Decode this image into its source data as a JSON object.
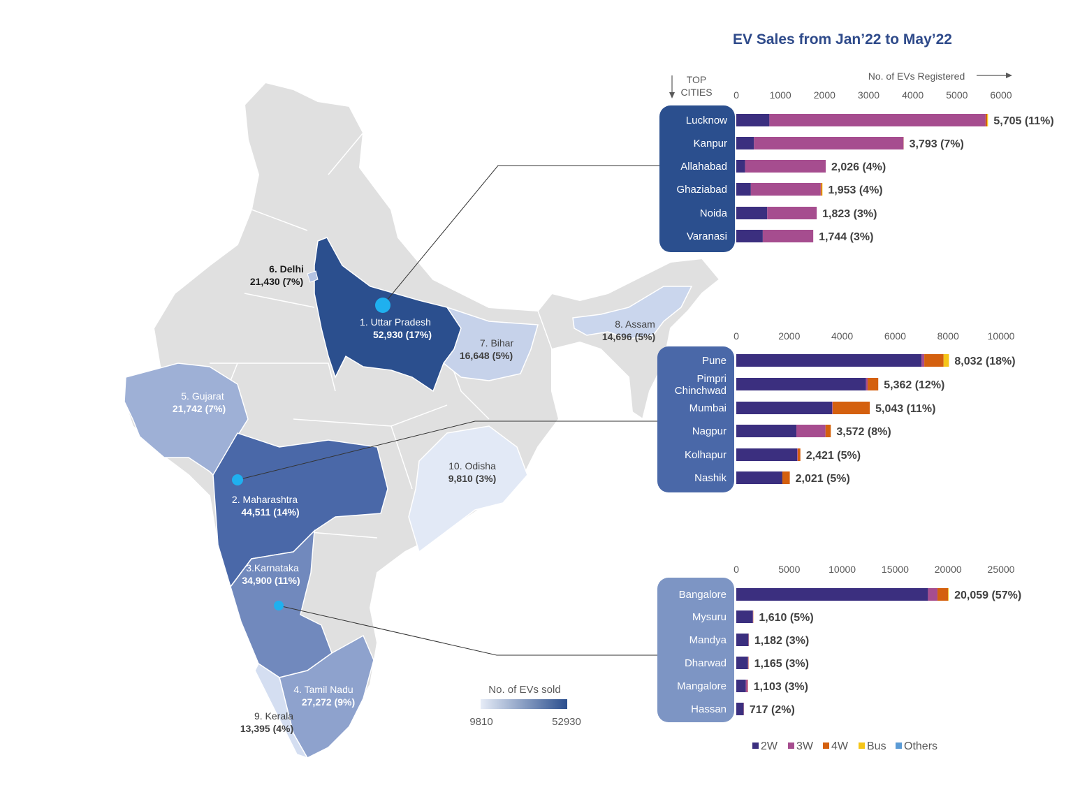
{
  "title": "EV Sales from Jan’22 to May’22",
  "axis_caption": "No. of EVs Registered",
  "top_cities_label": [
    "TOP",
    "CITIES"
  ],
  "colors": {
    "2W": "#3b2f7f",
    "3W": "#a64d8f",
    "4W": "#d4600f",
    "Bus": "#f5c518",
    "Others": "#5b9bd5",
    "panel_up": "#2b4f8e",
    "panel_mh": "#4a68a8",
    "panel_ka": "#7d95c4",
    "title": "#2e4a8a"
  },
  "legend": {
    "title": "No. of EVs sold",
    "min": "9810",
    "max": "52930",
    "color_min": "#e6ecf7",
    "color_max": "#2b4f8e"
  },
  "map": {
    "states": [
      {
        "name": "1. Uttar Pradesh",
        "value": "52,930 (17%)",
        "fill": "#2b4f8e",
        "text": "#ffffff"
      },
      {
        "name": "2. Maharashtra",
        "value": "44,511 (14%)",
        "fill": "#4a68a8",
        "text": "#ffffff"
      },
      {
        "name": "3.Karnataka",
        "value": "34,900 (11%)",
        "fill": "#7189bd",
        "text": "#ffffff"
      },
      {
        "name": "4. Tamil Nadu",
        "value": "27,272 (9%)",
        "fill": "#8ea2cd",
        "text": "#ffffff"
      },
      {
        "name": "5. Gujarat",
        "value": "21,742 (7%)",
        "fill": "#9eb0d6",
        "text": "#ffffff"
      },
      {
        "name": "6. Delhi",
        "value": "21,430 (7%)",
        "fill": "#b4c3e2",
        "text": "#1a1a1a"
      },
      {
        "name": "7. Bihar",
        "value": "16,648 (5%)",
        "fill": "#c6d2ea",
        "text": "#404040"
      },
      {
        "name": "8. Assam",
        "value": "14,696 (5%)",
        "fill": "#cad6ed",
        "text": "#404040"
      },
      {
        "name": "9. Kerala",
        "value": "13,395 (4%)",
        "fill": "#d4def1",
        "text": "#404040"
      },
      {
        "name": "10. Odisha",
        "value": "9,810 (3%)",
        "fill": "#e2e9f6",
        "text": "#404040"
      }
    ]
  },
  "chart_data": [
    {
      "type": "bar",
      "orientation": "horizontal",
      "stacked": true,
      "state": "Uttar Pradesh",
      "xlim": [
        0,
        6000
      ],
      "ticks": [
        0,
        1000,
        2000,
        3000,
        4000,
        5000,
        6000
      ],
      "categories": [
        "Lucknow",
        "Kanpur",
        "Allahabad",
        "Ghaziabad",
        "Noida",
        "Varanasi"
      ],
      "series": [
        {
          "name": "2W",
          "values": [
            750,
            400,
            200,
            330,
            700,
            600
          ]
        },
        {
          "name": "3W",
          "values": [
            4900,
            3390,
            1826,
            1583,
            1123,
            1144
          ]
        },
        {
          "name": "4W",
          "values": [
            35,
            3,
            0,
            25,
            0,
            0
          ]
        },
        {
          "name": "Bus",
          "values": [
            20,
            0,
            0,
            15,
            0,
            0
          ]
        },
        {
          "name": "Others",
          "values": [
            0,
            0,
            0,
            0,
            0,
            0
          ]
        }
      ],
      "data_labels": [
        "5,705 (11%)",
        "3,793 (7%)",
        "2,026 (4%)",
        "1,953 (4%)",
        "1,823 (3%)",
        "1,744 (3%)"
      ]
    },
    {
      "type": "bar",
      "orientation": "horizontal",
      "stacked": true,
      "state": "Maharashtra",
      "xlim": [
        0,
        10000
      ],
      "ticks": [
        0,
        2000,
        4000,
        6000,
        8000,
        10000
      ],
      "categories": [
        "Pune",
        "Pimpri Chinchwad",
        "Mumbai",
        "Nagpur",
        "Kolhapur",
        "Nashik"
      ],
      "series": [
        {
          "name": "2W",
          "values": [
            7000,
            4900,
            3620,
            2270,
            2300,
            1740
          ]
        },
        {
          "name": "3W",
          "values": [
            100,
            62,
            20,
            1100,
            21,
            0
          ]
        },
        {
          "name": "4W",
          "values": [
            730,
            400,
            1403,
            200,
            100,
            281
          ]
        },
        {
          "name": "Bus",
          "values": [
            202,
            0,
            0,
            2,
            0,
            0
          ]
        },
        {
          "name": "Others",
          "values": [
            0,
            0,
            0,
            0,
            0,
            0
          ]
        }
      ],
      "data_labels": [
        "8,032 (18%)",
        "5,362 (12%)",
        "5,043 (11%)",
        "3,572 (8%)",
        "2,421 (5%)",
        "2,021 (5%)"
      ]
    },
    {
      "type": "bar",
      "orientation": "horizontal",
      "stacked": true,
      "state": "Karnataka",
      "xlim": [
        0,
        25000
      ],
      "ticks": [
        0,
        5000,
        10000,
        15000,
        20000,
        25000
      ],
      "categories": [
        "Bangalore",
        "Mysuru",
        "Mandya",
        "Dharwad",
        "Mangalore",
        "Hassan"
      ],
      "series": [
        {
          "name": "2W",
          "values": [
            18100,
            1560,
            1150,
            1100,
            900,
            690
          ]
        },
        {
          "name": "3W",
          "values": [
            900,
            30,
            22,
            45,
            180,
            20
          ]
        },
        {
          "name": "4W",
          "values": [
            1000,
            20,
            10,
            20,
            23,
            7
          ]
        },
        {
          "name": "Bus",
          "values": [
            59,
            0,
            0,
            0,
            0,
            0
          ]
        },
        {
          "name": "Others",
          "values": [
            0,
            0,
            0,
            0,
            0,
            0
          ]
        }
      ],
      "data_labels": [
        "20,059 (57%)",
        "1,610 (5%)",
        "1,182 (3%)",
        "1,165 (3%)",
        "1,103 (3%)",
        "717 (2%)"
      ]
    }
  ]
}
